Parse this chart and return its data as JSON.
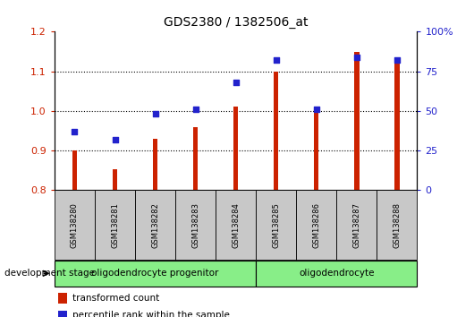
{
  "title": "GDS2380 / 1382506_at",
  "samples": [
    "GSM138280",
    "GSM138281",
    "GSM138282",
    "GSM138283",
    "GSM138284",
    "GSM138285",
    "GSM138286",
    "GSM138287",
    "GSM138288"
  ],
  "transformed_count": [
    0.9,
    0.853,
    0.93,
    0.96,
    1.01,
    1.1,
    1.01,
    1.15,
    1.13
  ],
  "percentile_rank": [
    37,
    32,
    48,
    51,
    68,
    82,
    51,
    84,
    82
  ],
  "ylim_left": [
    0.8,
    1.2
  ],
  "ylim_right": [
    0,
    100
  ],
  "yticks_left": [
    0.8,
    0.9,
    1.0,
    1.1,
    1.2
  ],
  "ytick_labels_left": [
    "0.8",
    "0.9",
    "1.0",
    "1.1",
    "1.2"
  ],
  "yticks_right": [
    0,
    25,
    50,
    75,
    100
  ],
  "ytick_labels_right": [
    "0",
    "25",
    "50",
    "75",
    "100%"
  ],
  "bar_color": "#CC2200",
  "dot_color": "#2222CC",
  "bar_bottom": 0.8,
  "bar_width": 0.12,
  "groups": [
    {
      "label": "oligodendrocyte progenitor",
      "start": 0,
      "end": 4,
      "color": "#88EE88"
    },
    {
      "label": "oligodendrocyte",
      "start": 5,
      "end": 8,
      "color": "#88EE88"
    }
  ],
  "group_label": "development stage",
  "legend_bar_label": "transformed count",
  "legend_dot_label": "percentile rank within the sample",
  "background_color": "#ffffff",
  "label_box_color": "#C8C8C8",
  "grid_color": "#000000"
}
